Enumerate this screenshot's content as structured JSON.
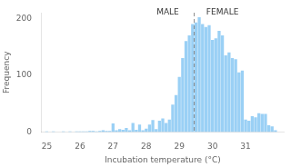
{
  "chart_data": {
    "type": "bar",
    "x": [
      25.0,
      25.1,
      25.2,
      25.3,
      25.4,
      25.5,
      25.6,
      25.7,
      25.8,
      25.9,
      26.0,
      26.1,
      26.2,
      26.3,
      26.4,
      26.5,
      26.6,
      26.7,
      26.8,
      26.9,
      27.0,
      27.1,
      27.2,
      27.3,
      27.4,
      27.5,
      27.6,
      27.7,
      27.8,
      27.9,
      28.0,
      28.1,
      28.2,
      28.3,
      28.4,
      28.5,
      28.6,
      28.7,
      28.8,
      28.9,
      29.0,
      29.1,
      29.2,
      29.3,
      29.4,
      29.5,
      29.6,
      29.7,
      29.8,
      29.9,
      30.0,
      30.1,
      30.2,
      30.3,
      30.4,
      30.5,
      30.6,
      30.7,
      30.8,
      30.9,
      31.0,
      31.1,
      31.2,
      31.3,
      31.4,
      31.5,
      31.6,
      31.7,
      31.8,
      31.9
    ],
    "values": [
      1,
      0,
      1,
      0,
      0,
      1,
      0,
      1,
      0,
      1,
      1,
      1,
      1,
      2,
      2,
      1,
      2,
      3,
      2,
      2,
      15,
      3,
      5,
      4,
      7,
      3,
      16,
      4,
      13,
      3,
      6,
      13,
      21,
      5,
      20,
      24,
      16,
      22,
      48,
      65,
      97,
      130,
      160,
      170,
      190,
      193,
      202,
      190,
      185,
      188,
      162,
      165,
      178,
      170,
      135,
      140,
      130,
      128,
      105,
      108,
      22,
      20,
      28,
      26,
      33,
      32,
      32,
      12,
      10,
      3
    ],
    "xlabel": "Incubation temperature (°C)",
    "ylabel": "Frequency",
    "xlim": [
      24.85,
      32.15
    ],
    "ylim": [
      0,
      210
    ],
    "xticks": [
      25,
      26,
      27,
      28,
      29,
      30,
      31
    ],
    "yticks": [
      0,
      100,
      200
    ],
    "grid": false,
    "vlines": [
      29.45
    ],
    "annotations": [
      {
        "text": "MALE",
        "x": 28.65,
        "y": 204
      },
      {
        "text": "FEMALE",
        "x": 30.3,
        "y": 204
      }
    ]
  }
}
